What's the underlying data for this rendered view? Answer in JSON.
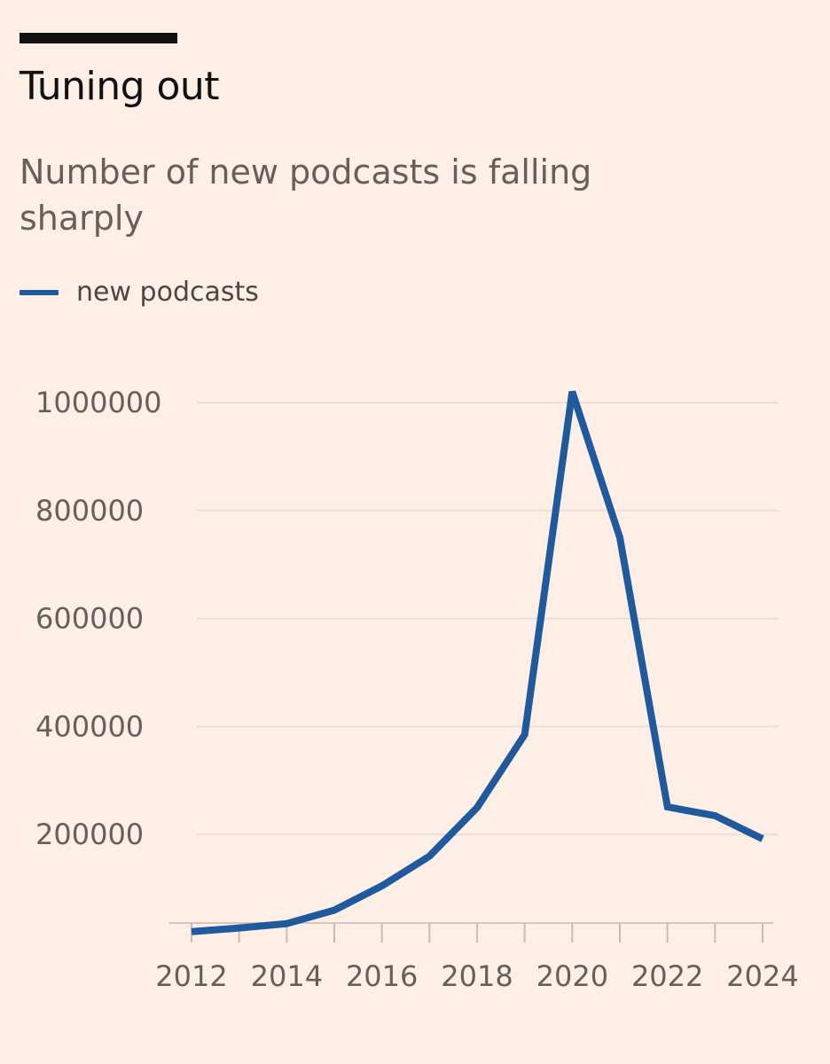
{
  "title": "Tuning out",
  "subtitle": "Number of new podcasts is falling sharply",
  "colors": {
    "series": "#1f5a9e",
    "background": "#fdeee6"
  },
  "chart_data": {
    "type": "line",
    "title": "Tuning out",
    "subtitle": "Number of new podcasts is falling sharply",
    "xlabel": "",
    "ylabel": "",
    "x": [
      2012,
      2013,
      2014,
      2015,
      2016,
      2017,
      2018,
      2019,
      2020,
      2021,
      2022,
      2023,
      2024
    ],
    "series": [
      {
        "name": "new podcasts",
        "color": "#1f5a9e",
        "values": [
          20000,
          27000,
          35000,
          60000,
          105000,
          160000,
          250000,
          385000,
          1020000,
          750000,
          251000,
          235000,
          192000
        ]
      }
    ],
    "yticks": [
      "200000",
      "400000",
      "600000",
      "800000",
      "1000000"
    ],
    "ytick_values": [
      200000,
      400000,
      600000,
      800000,
      1000000
    ],
    "xticks": [
      "2012",
      "2014",
      "2016",
      "2018",
      "2020",
      "2022",
      "2024"
    ],
    "xtick_values": [
      2012,
      2014,
      2016,
      2018,
      2020,
      2022,
      2024
    ],
    "ylim": [
      0,
      1050000
    ],
    "xlim": [
      2012,
      2024
    ],
    "legend": {
      "position": "top-left",
      "entries": [
        "new podcasts"
      ]
    },
    "grid": true
  }
}
